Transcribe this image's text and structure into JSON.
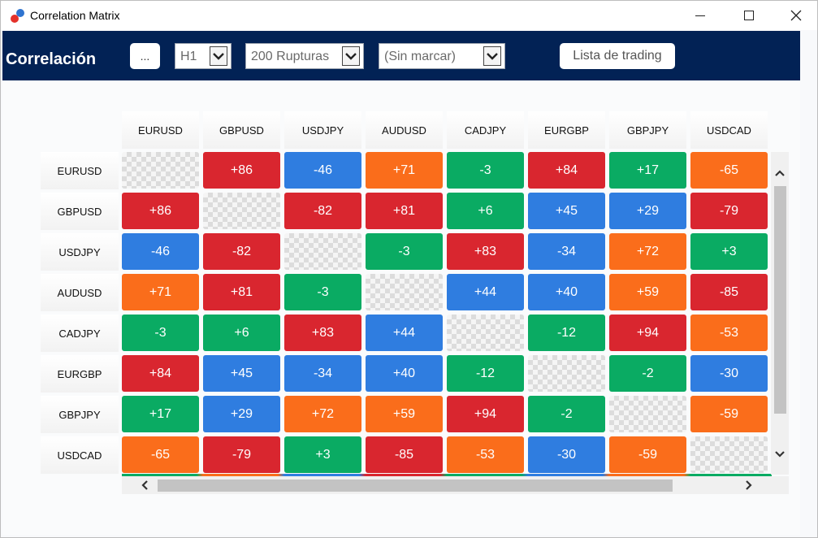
{
  "window": {
    "title": "Correlation Matrix",
    "accent": "#022255"
  },
  "header": {
    "title": "Correlación",
    "dots_label": "...",
    "timeframe": "H1",
    "breakouts": "200 Rupturas",
    "marker": "(Sin marcar)",
    "list_button": "Lista de trading"
  },
  "colors": {
    "red": "#d9262f",
    "blue": "#2f7de0",
    "orange": "#fa6d1b",
    "green": "#0aab63"
  },
  "matrix": {
    "symbols": [
      "EURUSD",
      "GBPUSD",
      "USDJPY",
      "AUDUSD",
      "CADJPY",
      "EURGBP",
      "GBPJPY",
      "USDCAD"
    ],
    "rows": [
      [
        {
          "v": "",
          "c": "empty"
        },
        {
          "v": "+86",
          "c": "red"
        },
        {
          "v": "-46",
          "c": "blue"
        },
        {
          "v": "+71",
          "c": "orange"
        },
        {
          "v": "-3",
          "c": "green"
        },
        {
          "v": "+84",
          "c": "red"
        },
        {
          "v": "+17",
          "c": "green"
        },
        {
          "v": "-65",
          "c": "orange"
        }
      ],
      [
        {
          "v": "+86",
          "c": "red"
        },
        {
          "v": "",
          "c": "empty"
        },
        {
          "v": "-82",
          "c": "red"
        },
        {
          "v": "+81",
          "c": "red"
        },
        {
          "v": "+6",
          "c": "green"
        },
        {
          "v": "+45",
          "c": "blue"
        },
        {
          "v": "+29",
          "c": "blue"
        },
        {
          "v": "-79",
          "c": "red"
        }
      ],
      [
        {
          "v": "-46",
          "c": "blue"
        },
        {
          "v": "-82",
          "c": "red"
        },
        {
          "v": "",
          "c": "empty"
        },
        {
          "v": "-3",
          "c": "green"
        },
        {
          "v": "+83",
          "c": "red"
        },
        {
          "v": "-34",
          "c": "blue"
        },
        {
          "v": "+72",
          "c": "orange"
        },
        {
          "v": "+3",
          "c": "green"
        }
      ],
      [
        {
          "v": "+71",
          "c": "orange"
        },
        {
          "v": "+81",
          "c": "red"
        },
        {
          "v": "-3",
          "c": "green"
        },
        {
          "v": "",
          "c": "empty"
        },
        {
          "v": "+44",
          "c": "blue"
        },
        {
          "v": "+40",
          "c": "blue"
        },
        {
          "v": "+59",
          "c": "orange"
        },
        {
          "v": "-85",
          "c": "red"
        }
      ],
      [
        {
          "v": "-3",
          "c": "green"
        },
        {
          "v": "+6",
          "c": "green"
        },
        {
          "v": "+83",
          "c": "red"
        },
        {
          "v": "+44",
          "c": "blue"
        },
        {
          "v": "",
          "c": "empty"
        },
        {
          "v": "-12",
          "c": "green"
        },
        {
          "v": "+94",
          "c": "red"
        },
        {
          "v": "-53",
          "c": "orange"
        }
      ],
      [
        {
          "v": "+84",
          "c": "red"
        },
        {
          "v": "+45",
          "c": "blue"
        },
        {
          "v": "-34",
          "c": "blue"
        },
        {
          "v": "+40",
          "c": "blue"
        },
        {
          "v": "-12",
          "c": "green"
        },
        {
          "v": "",
          "c": "empty"
        },
        {
          "v": "-2",
          "c": "green"
        },
        {
          "v": "-30",
          "c": "blue"
        }
      ],
      [
        {
          "v": "+17",
          "c": "green"
        },
        {
          "v": "+29",
          "c": "blue"
        },
        {
          "v": "+72",
          "c": "orange"
        },
        {
          "v": "+59",
          "c": "orange"
        },
        {
          "v": "+94",
          "c": "red"
        },
        {
          "v": "-2",
          "c": "green"
        },
        {
          "v": "",
          "c": "empty"
        },
        {
          "v": "-59",
          "c": "orange"
        }
      ],
      [
        {
          "v": "-65",
          "c": "orange"
        },
        {
          "v": "-79",
          "c": "red"
        },
        {
          "v": "+3",
          "c": "green"
        },
        {
          "v": "-85",
          "c": "red"
        },
        {
          "v": "-53",
          "c": "orange"
        },
        {
          "v": "-30",
          "c": "blue"
        },
        {
          "v": "-59",
          "c": "orange"
        },
        {
          "v": "",
          "c": "empty"
        }
      ]
    ]
  },
  "icons": {
    "app": "app-logo-icon",
    "minimize": "minimize-icon",
    "maximize": "maximize-icon",
    "close": "close-icon",
    "dropdown": "chevron-down-icon"
  }
}
